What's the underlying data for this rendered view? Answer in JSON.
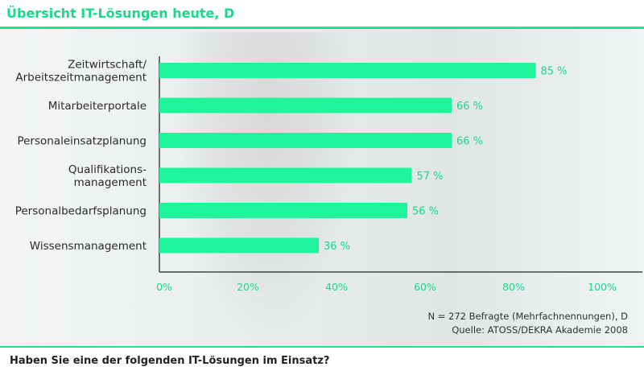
{
  "header": {
    "title": "Übersicht IT-Lösungen heute, D"
  },
  "footer": {
    "question": "Haben Sie eine der folgenden IT-Lösungen im Einsatz?",
    "sample_note": "N = 272 Befragte (Mehrfachnennungen), D",
    "source_note": "Quelle: ATOSS/DEKRA Akademie 2008"
  },
  "colors": {
    "accent": "#18e48a",
    "bar": "#1ef59b",
    "label_value": "#18d98a",
    "axis": "#444444"
  },
  "chart_data": {
    "type": "bar",
    "orientation": "horizontal",
    "categories": [
      [
        "Zeitwirtschaft/",
        "Arbeitszeitmanagement"
      ],
      [
        "Mitarbeiterportale"
      ],
      [
        "Personaleinsatzplanung"
      ],
      [
        "Qualifikations-",
        "management"
      ],
      [
        "Personalbedarfsplanung"
      ],
      [
        "Wissensmanagement"
      ]
    ],
    "values": [
      85,
      66,
      66,
      57,
      56,
      36
    ],
    "value_labels": [
      "85 %",
      "66 %",
      "66 %",
      "57 %",
      "56 %",
      "36 %"
    ],
    "xlim": [
      0,
      100
    ],
    "xticks": [
      "0%",
      "20%",
      "40%",
      "60%",
      "80%",
      "100%"
    ],
    "grid": false
  }
}
